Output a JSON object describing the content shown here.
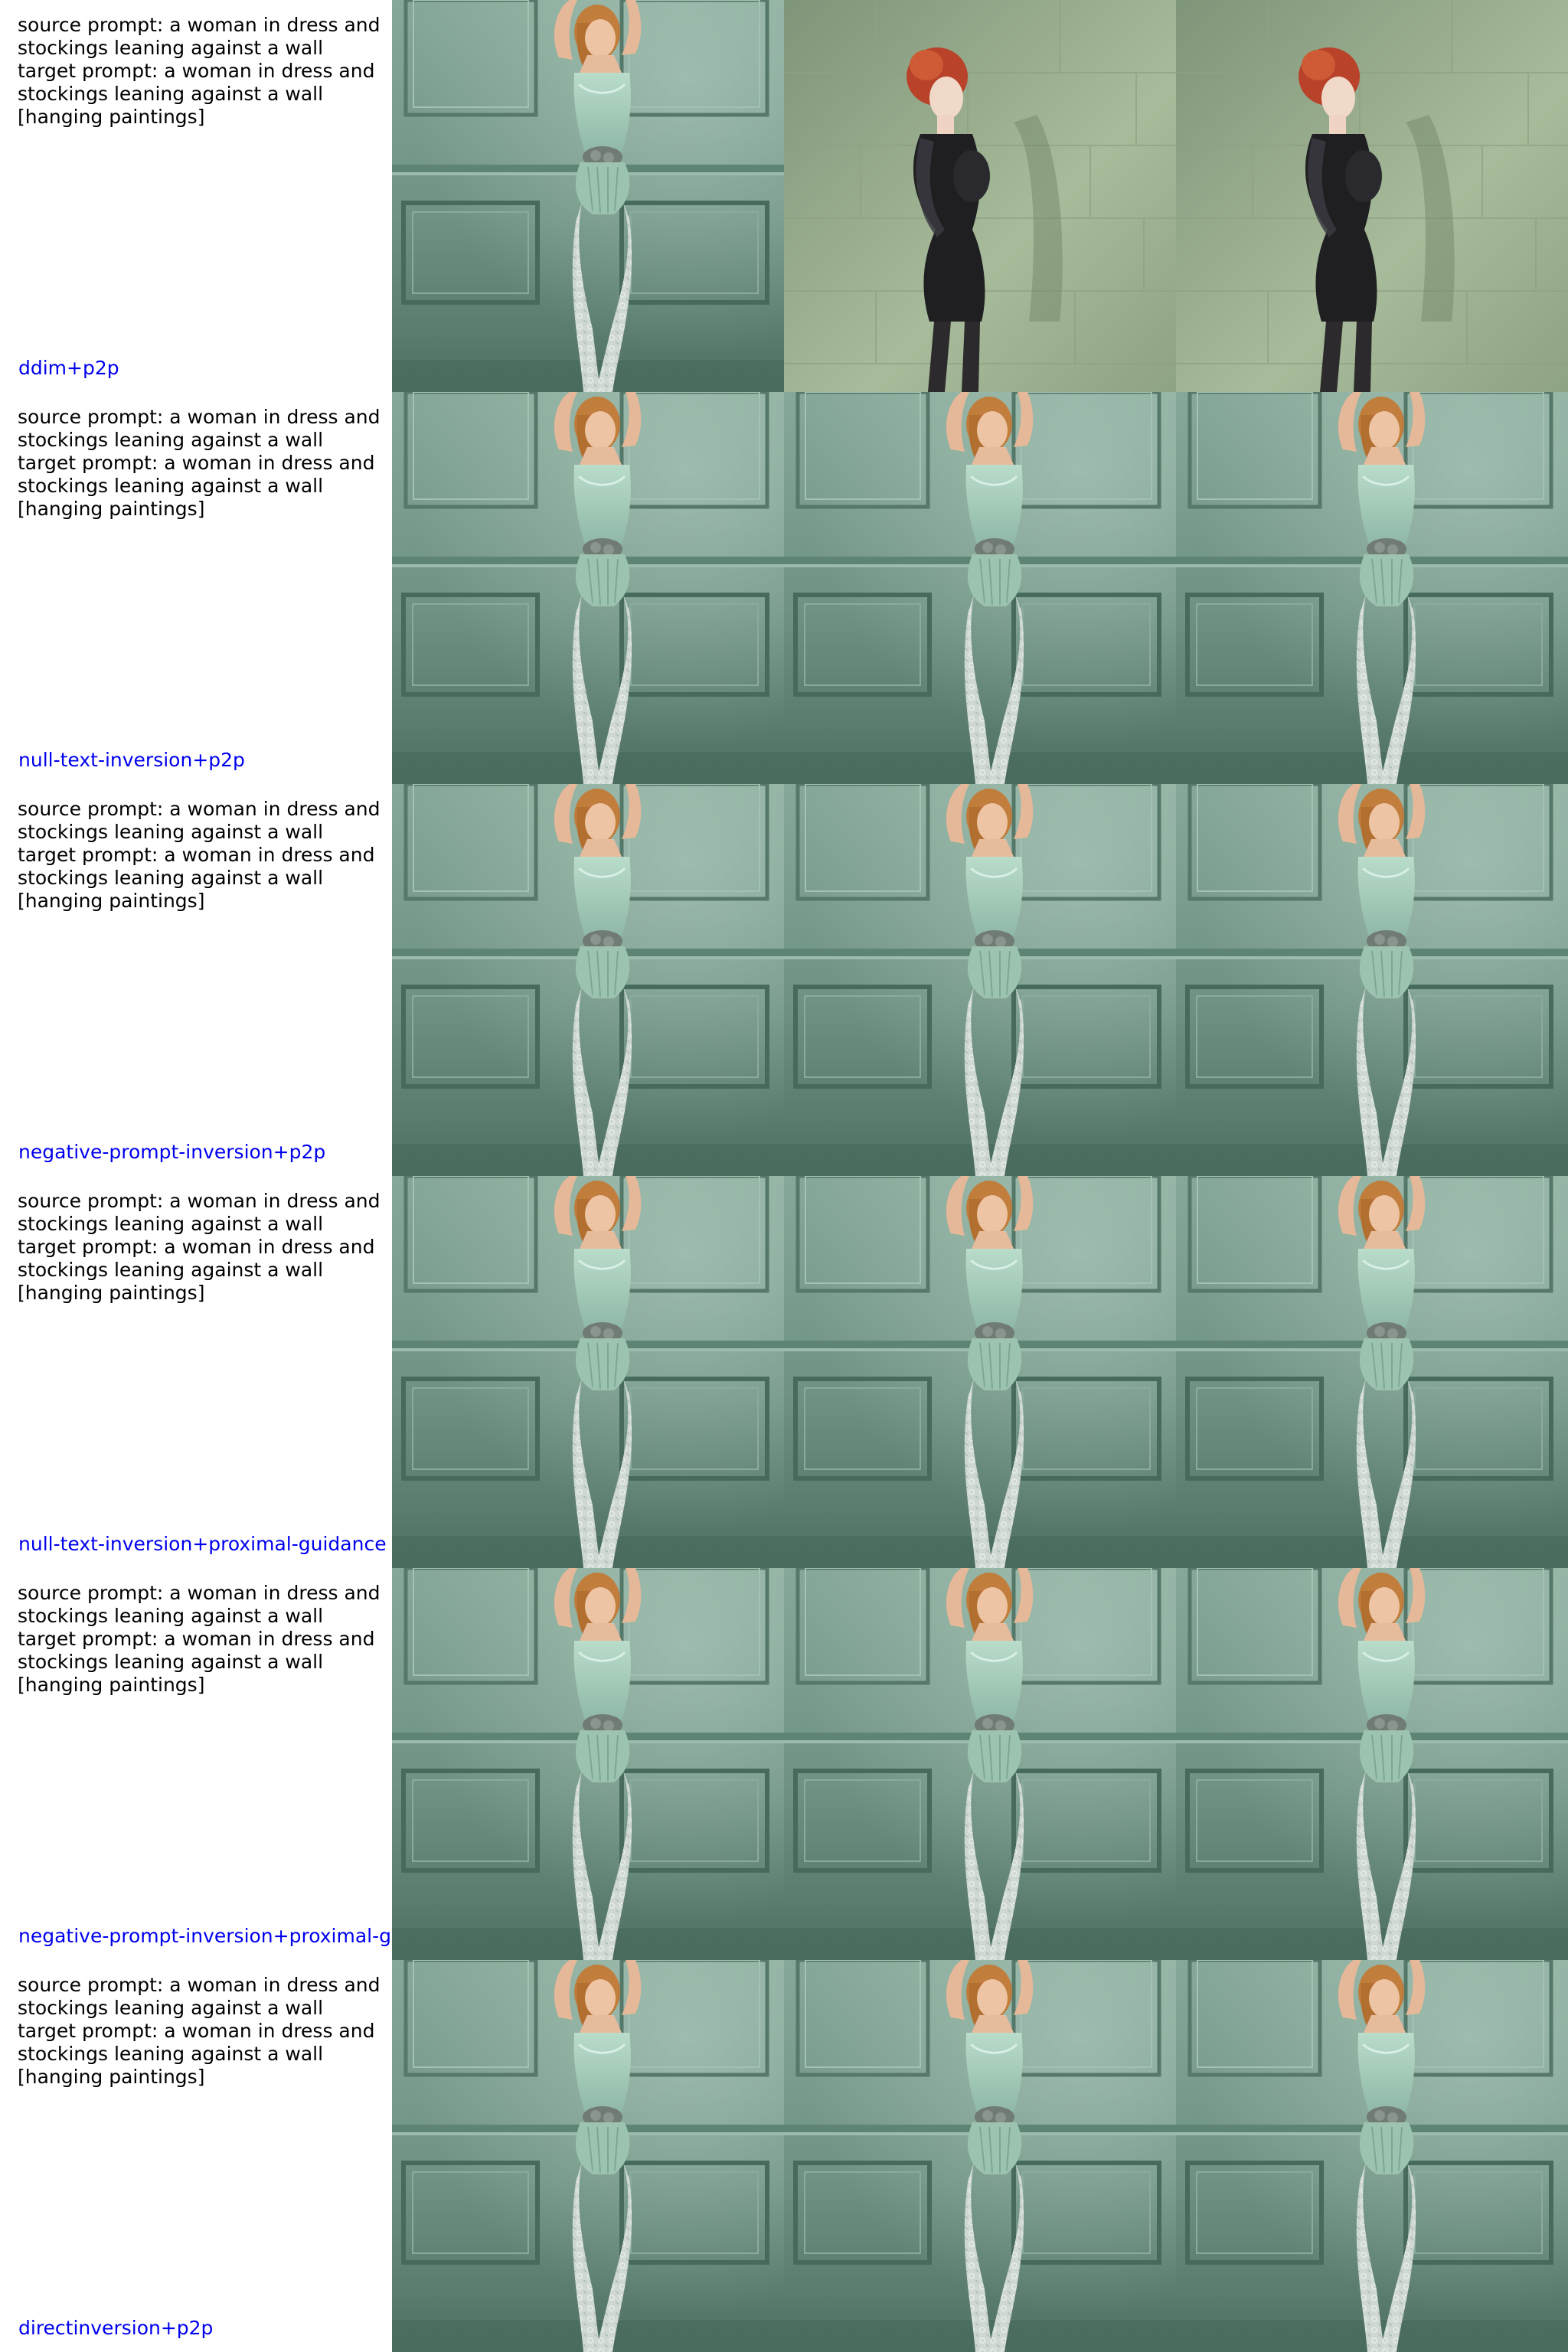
{
  "rows": [
    {
      "prompt": "source prompt: a woman in dress and\nstockings leaning against a wall\ntarget prompt: a woman in dress and\nstockings leaning against a wall\n[hanging paintings]",
      "method": "ddim+p2p",
      "images": [
        "woman-lace-bodysuit-photo",
        "red-haired-woman-black-dress-photo",
        "red-haired-woman-black-dress-photo"
      ]
    },
    {
      "prompt": "source prompt: a woman in dress and\nstockings leaning against a wall\ntarget prompt: a woman in dress and\nstockings leaning against a wall\n[hanging paintings]",
      "method": "null-text-inversion+p2p",
      "images": [
        "woman-lace-bodysuit-photo",
        "woman-lace-bodysuit-photo",
        "woman-lace-bodysuit-photo"
      ]
    },
    {
      "prompt": "source prompt: a woman in dress and\nstockings leaning against a wall\ntarget prompt: a woman in dress and\nstockings leaning against a wall\n[hanging paintings]",
      "method": "negative-prompt-inversion+p2p",
      "images": [
        "woman-lace-bodysuit-photo",
        "woman-lace-bodysuit-photo",
        "woman-lace-bodysuit-photo"
      ]
    },
    {
      "prompt": "source prompt: a woman in dress and\nstockings leaning against a wall\ntarget prompt: a woman in dress and\nstockings leaning against a wall\n[hanging paintings]",
      "method": "null-text-inversion+proximal-guidance",
      "images": [
        "woman-lace-bodysuit-photo",
        "woman-lace-bodysuit-photo",
        "woman-lace-bodysuit-photo"
      ]
    },
    {
      "prompt": "source prompt: a woman in dress and\nstockings leaning against a wall\ntarget prompt: a woman in dress and\nstockings leaning against a wall\n[hanging paintings]",
      "method": "negative-prompt-inversion+proximal-g",
      "images": [
        "woman-lace-bodysuit-photo",
        "woman-lace-bodysuit-photo",
        "woman-lace-bodysuit-photo"
      ]
    },
    {
      "prompt": "source prompt: a woman in dress and\nstockings leaning against a wall\ntarget prompt: a woman in dress and\nstockings leaning against a wall\n[hanging paintings]",
      "method": "directinversion+p2p",
      "images": [
        "woman-lace-bodysuit-photo",
        "woman-lace-bodysuit-photo",
        "woman-lace-bodysuit-photo"
      ]
    }
  ],
  "colors": {
    "method_label": "#0000ee",
    "prompt_text": "#000000",
    "wall_green": "#6f9484",
    "wall_light": "#a9c7b8",
    "wall_olive": "#9fb193"
  }
}
